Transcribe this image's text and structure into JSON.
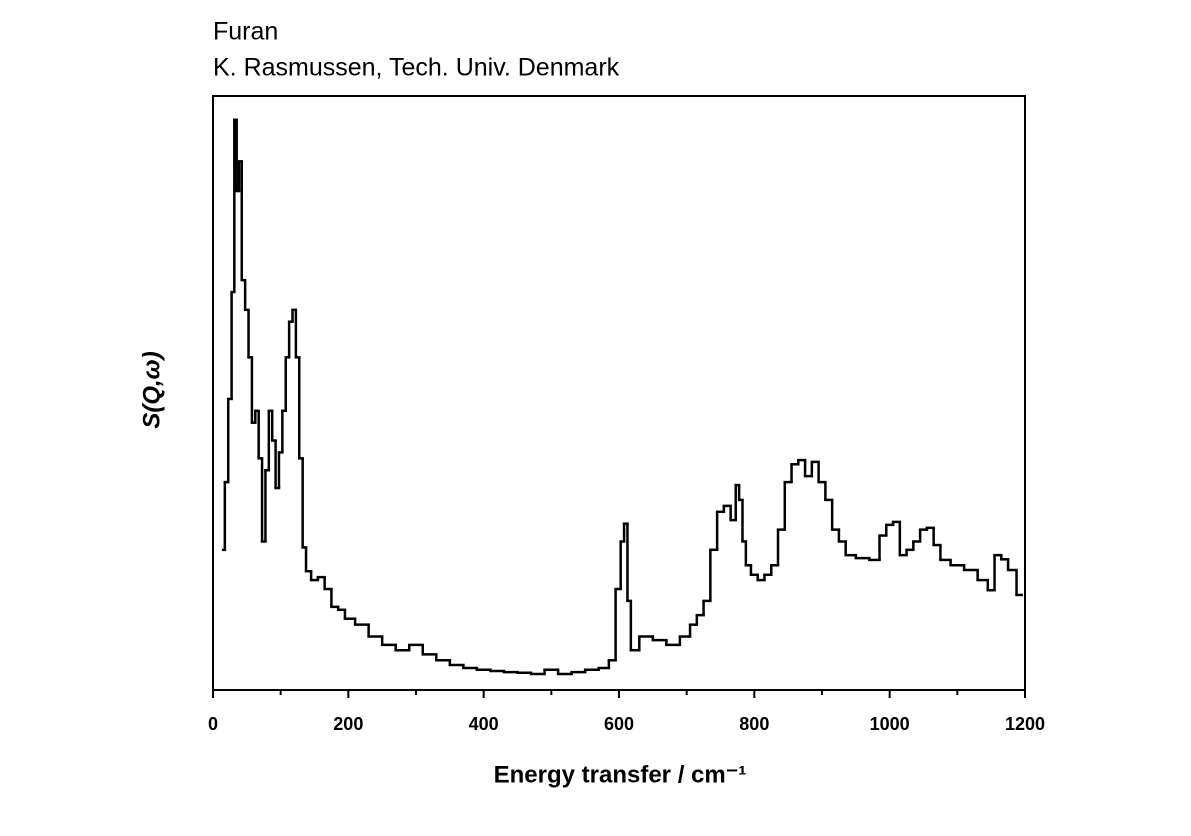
{
  "chart_data": {
    "type": "line",
    "drawstyle": "steps-mid",
    "title": "Furan",
    "subtitle": "K. Rasmussen, Tech. Univ. Denmark",
    "x_label": "Energy transfer / cm⁻¹",
    "y_label": "S(Q,ω)",
    "xlim": [
      0,
      1200
    ],
    "xticks": [
      0,
      200,
      400,
      600,
      800,
      1000,
      1200
    ],
    "xminorticks": [
      100,
      300,
      500,
      700,
      900,
      1100
    ],
    "ylim": [
      0,
      100
    ],
    "color": "#000000",
    "x": [
      15,
      20,
      25,
      30,
      33,
      37,
      40,
      45,
      50,
      55,
      60,
      65,
      70,
      75,
      80,
      85,
      90,
      95,
      100,
      105,
      110,
      115,
      120,
      125,
      130,
      135,
      140,
      150,
      160,
      170,
      180,
      190,
      200,
      220,
      240,
      260,
      280,
      300,
      320,
      340,
      360,
      380,
      400,
      420,
      440,
      460,
      480,
      500,
      520,
      540,
      560,
      580,
      590,
      600,
      605,
      610,
      615,
      620,
      640,
      660,
      680,
      700,
      710,
      720,
      730,
      740,
      750,
      760,
      770,
      775,
      780,
      785,
      790,
      800,
      810,
      820,
      830,
      840,
      850,
      860,
      870,
      880,
      890,
      900,
      910,
      920,
      930,
      940,
      960,
      980,
      990,
      1000,
      1010,
      1020,
      1030,
      1040,
      1050,
      1060,
      1070,
      1080,
      1100,
      1120,
      1140,
      1150,
      1160,
      1170,
      1180,
      1195
    ],
    "values": [
      23.6,
      35,
      49,
      67,
      96,
      84,
      89,
      69,
      64,
      56,
      45,
      47,
      39,
      25,
      37,
      47,
      42,
      34,
      40,
      47,
      56,
      62,
      64,
      56,
      39,
      24,
      20,
      18.5,
      19,
      17,
      14,
      13.5,
      12,
      11,
      9,
      7.6,
      6.7,
      7.6,
      6,
      5,
      4.2,
      3.7,
      3.4,
      3.2,
      3,
      2.9,
      2.7,
      3.4,
      2.7,
      3,
      3.4,
      3.7,
      5,
      17,
      25,
      28,
      15,
      6.7,
      9,
      8.4,
      7.6,
      9,
      11,
      12.6,
      15,
      23.6,
      30,
      31,
      28.6,
      34.5,
      32,
      25,
      21,
      19.4,
      18.5,
      19.4,
      21,
      27,
      35,
      38,
      38.7,
      36,
      38.4,
      35,
      32,
      27,
      25,
      22.7,
      22.2,
      21.9,
      26,
      27.8,
      28.3,
      22.7,
      23.6,
      25,
      27,
      27.3,
      24.4,
      21.9,
      21,
      20.2,
      18.5,
      16.8,
      22.7,
      22,
      20.2,
      16
    ]
  }
}
